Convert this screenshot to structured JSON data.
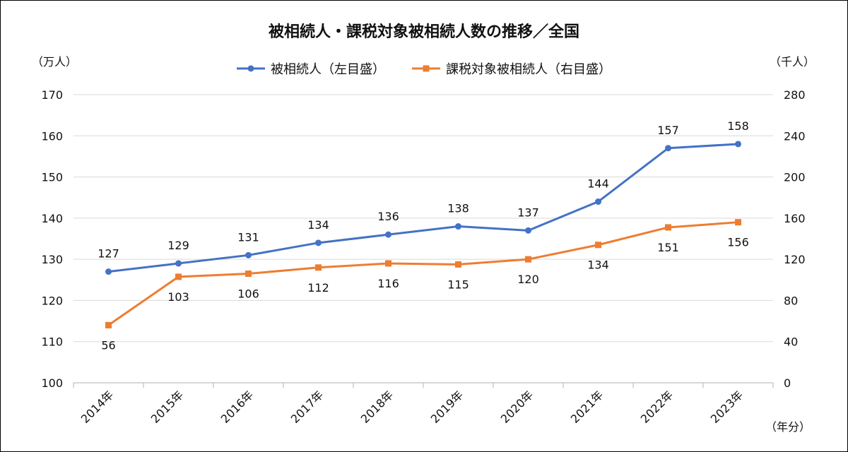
{
  "chart_data": {
    "type": "line",
    "title": "被相続人・課税対象被相続人数の推移／全国",
    "categories": [
      "2014年",
      "2015年",
      "2016年",
      "2017年",
      "2018年",
      "2019年",
      "2020年",
      "2021年",
      "2022年",
      "2023年"
    ],
    "series": [
      {
        "name": "被相続人（左目盛）",
        "axis": "left",
        "color": "#4472C4",
        "marker": "circle",
        "values": [
          127,
          129,
          131,
          134,
          136,
          138,
          137,
          144,
          157,
          158
        ],
        "labels": [
          "127",
          "129",
          "131",
          "134",
          "136",
          "138",
          "137",
          "144",
          "157",
          "158"
        ],
        "label_position": "above"
      },
      {
        "name": "課税対象被相続人（右目盛）",
        "axis": "right",
        "color": "#ED7D31",
        "marker": "square",
        "values": [
          56,
          103,
          106,
          112,
          116,
          115,
          120,
          134,
          151,
          156
        ],
        "labels": [
          "56",
          "103",
          "106",
          "112",
          "116",
          "115",
          "120",
          "134",
          "151",
          "156"
        ],
        "label_position": "below"
      }
    ],
    "y_left": {
      "unit": "（万人）",
      "ylim": [
        100,
        170
      ],
      "ticks": [
        "100",
        "110",
        "120",
        "130",
        "140",
        "150",
        "160",
        "170"
      ]
    },
    "y_right": {
      "unit": "（千人）",
      "ylim": [
        0,
        280
      ],
      "ticks": [
        "0",
        "40",
        "80",
        "120",
        "160",
        "200",
        "240",
        "280"
      ]
    },
    "x_unit": "（年分）",
    "grid": true,
    "legend_placement": "top"
  }
}
